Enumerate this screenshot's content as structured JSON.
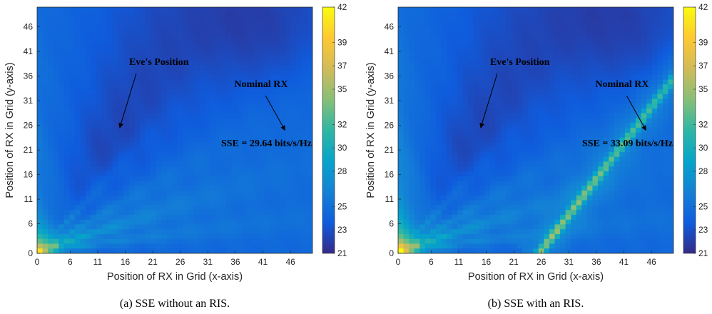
{
  "chart_data": [
    {
      "type": "heatmap",
      "caption": "(a) SSE without an RIS.",
      "xlabel": "Position of RX in Grid (x-axis)",
      "ylabel": "Position of RX in Grid (y-axis)",
      "xlim": [
        0,
        50
      ],
      "ylim": [
        0,
        50
      ],
      "x_ticks": [
        "0",
        "6",
        "11",
        "16",
        "21",
        "26",
        "31",
        "36",
        "41",
        "46"
      ],
      "y_ticks": [
        "0",
        "6",
        "11",
        "16",
        "21",
        "26",
        "31",
        "36",
        "41",
        "46"
      ],
      "colorbar": {
        "min": 21,
        "max": 42,
        "ticks": [
          "21",
          "23",
          "25",
          "28",
          "30",
          "32",
          "35",
          "37",
          "39",
          "42"
        ],
        "colormap": "parula"
      },
      "annotations": [
        {
          "text": "Eve's Position",
          "arrow_from": [
            18,
            36.5
          ],
          "arrow_to": [
            15,
            25.5
          ]
        },
        {
          "text": "Nominal RX",
          "arrow_from": [
            41.5,
            32
          ],
          "arrow_to": [
            45,
            25
          ]
        },
        {
          "text": "SSE = 29.64 bits/s/Hz"
        }
      ],
      "has_ris": false,
      "value_range_observed": [
        21,
        41
      ]
    },
    {
      "type": "heatmap",
      "caption": "(b) SSE with an RIS.",
      "xlabel": "Position of RX in Grid (x-axis)",
      "ylabel": "Position of RX in Grid (y-axis)",
      "xlim": [
        0,
        50
      ],
      "ylim": [
        0,
        50
      ],
      "x_ticks": [
        "0",
        "6",
        "11",
        "16",
        "21",
        "26",
        "31",
        "36",
        "41",
        "46"
      ],
      "y_ticks": [
        "0",
        "6",
        "11",
        "16",
        "21",
        "26",
        "31",
        "36",
        "41",
        "46"
      ],
      "colorbar": {
        "min": 21,
        "max": 42,
        "ticks": [
          "21",
          "23",
          "25",
          "28",
          "30",
          "32",
          "35",
          "37",
          "39",
          "42"
        ],
        "colormap": "parula"
      },
      "annotations": [
        {
          "text": "Eve's Position",
          "arrow_from": [
            18,
            36.5
          ],
          "arrow_to": [
            15,
            25.5
          ]
        },
        {
          "text": "Nominal RX",
          "arrow_from": [
            41.5,
            32
          ],
          "arrow_to": [
            45,
            25
          ]
        },
        {
          "text": "SSE = 33.09 bits/s/Hz"
        }
      ],
      "has_ris": true,
      "value_range_observed": [
        21,
        42
      ]
    }
  ]
}
